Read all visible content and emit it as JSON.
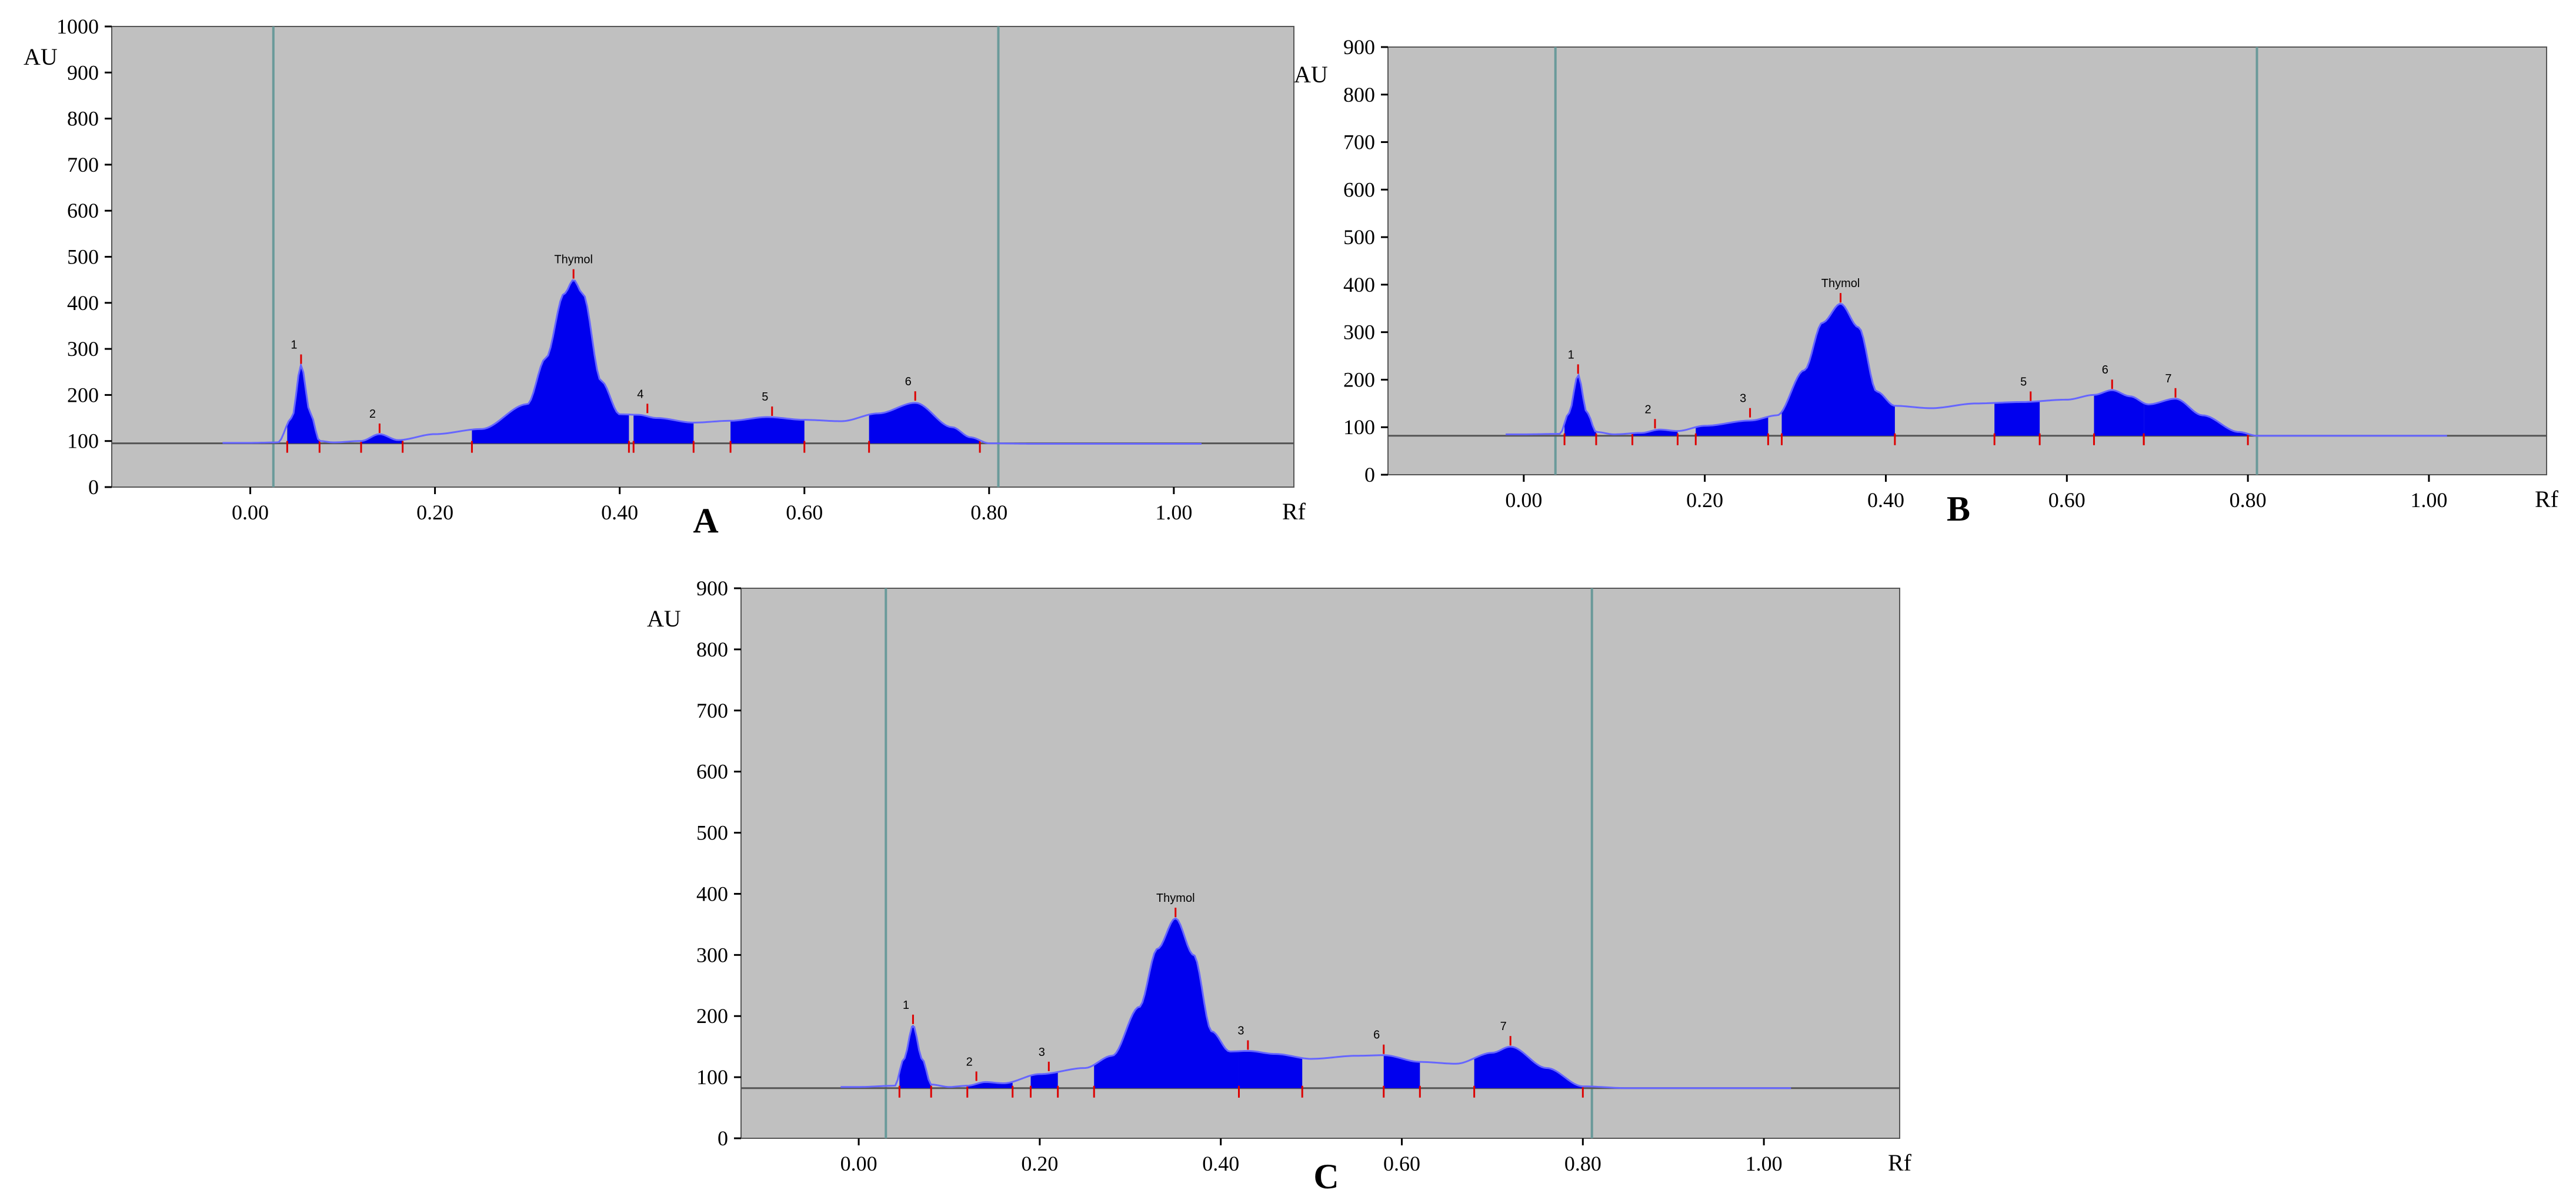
{
  "chart_data": [
    {
      "type": "area",
      "panel_label": "A",
      "ylabel": "AU",
      "xlabel": "Rf",
      "ylim": [
        0,
        1000
      ],
      "xlim": [
        -0.15,
        1.13
      ],
      "y_ticks": [
        0,
        100,
        200,
        300,
        400,
        500,
        600,
        700,
        800,
        900,
        1000
      ],
      "x_ticks": [
        "0.00",
        "0.20",
        "0.40",
        "0.60",
        "0.80",
        "1.00"
      ],
      "x_tick_values": [
        0.0,
        0.2,
        0.4,
        0.6,
        0.8,
        1.0
      ],
      "vertical_markers": [
        0.025,
        0.81
      ],
      "baseline": 95,
      "plot_bg": "#c0c0c0",
      "fill_color": "#0000ee",
      "line_color": "#6666ff",
      "marker_color": "#6a9a9a",
      "curve": {
        "rf": [
          -0.03,
          0.0,
          0.03,
          0.045,
          0.055,
          0.065,
          0.075,
          0.09,
          0.12,
          0.14,
          0.16,
          0.2,
          0.25,
          0.3,
          0.32,
          0.34,
          0.35,
          0.36,
          0.38,
          0.4,
          0.42,
          0.44,
          0.48,
          0.52,
          0.56,
          0.6,
          0.64,
          0.68,
          0.72,
          0.76,
          0.78,
          0.8,
          0.85,
          0.95,
          1.03
        ],
        "au": [
          96,
          96,
          97,
          150,
          265,
          160,
          100,
          97,
          100,
          115,
          102,
          115,
          126,
          180,
          280,
          420,
          450,
          420,
          230,
          158,
          157,
          150,
          140,
          144,
          152,
          146,
          143,
          160,
          183,
          130,
          108,
          95,
          94,
          94,
          94
        ]
      },
      "filled_regions": [
        [
          0.04,
          0.075
        ],
        [
          0.12,
          0.165
        ],
        [
          0.24,
          0.41
        ],
        [
          0.415,
          0.48
        ],
        [
          0.52,
          0.6
        ],
        [
          0.67,
          0.79
        ]
      ],
      "peaks": [
        {
          "label": "1",
          "rf": 0.055,
          "au": 265
        },
        {
          "label": "2",
          "rf": 0.14,
          "au": 115
        },
        {
          "label": "Thymol",
          "rf": 0.35,
          "au": 450
        },
        {
          "label": "4",
          "rf": 0.43,
          "au": 158
        },
        {
          "label": "5",
          "rf": 0.565,
          "au": 152
        },
        {
          "label": "6",
          "rf": 0.72,
          "au": 185
        }
      ]
    },
    {
      "type": "area",
      "panel_label": "B",
      "ylabel": "AU",
      "xlabel": "Rf",
      "ylim": [
        0,
        900
      ],
      "xlim": [
        -0.15,
        1.13
      ],
      "y_ticks": [
        0,
        100,
        200,
        300,
        400,
        500,
        600,
        700,
        800,
        900
      ],
      "x_ticks": [
        "0.00",
        "0.20",
        "0.40",
        "0.60",
        "0.80",
        "1.00"
      ],
      "x_tick_values": [
        0.0,
        0.2,
        0.4,
        0.6,
        0.8,
        1.0
      ],
      "vertical_markers": [
        0.035,
        0.81
      ],
      "baseline": 82,
      "plot_bg": "#c0c0c0",
      "fill_color": "#0000ee",
      "line_color": "#6666ff",
      "marker_color": "#6a9a9a",
      "curve": {
        "rf": [
          -0.02,
          0.0,
          0.04,
          0.05,
          0.06,
          0.07,
          0.08,
          0.1,
          0.13,
          0.15,
          0.17,
          0.2,
          0.25,
          0.28,
          0.31,
          0.33,
          0.35,
          0.37,
          0.39,
          0.41,
          0.45,
          0.5,
          0.55,
          0.6,
          0.63,
          0.65,
          0.67,
          0.69,
          0.72,
          0.75,
          0.79,
          0.81,
          0.9,
          1.02
        ],
        "au": [
          85,
          85,
          86,
          130,
          210,
          130,
          90,
          85,
          88,
          95,
          92,
          103,
          114,
          125,
          220,
          320,
          360,
          310,
          175,
          145,
          140,
          150,
          153,
          158,
          168,
          178,
          165,
          148,
          160,
          125,
          90,
          82,
          82,
          82
        ]
      },
      "filled_regions": [
        [
          0.045,
          0.08
        ],
        [
          0.12,
          0.17
        ],
        [
          0.19,
          0.27
        ],
        [
          0.285,
          0.41
        ],
        [
          0.52,
          0.57
        ],
        [
          0.63,
          0.685
        ],
        [
          0.685,
          0.8
        ]
      ],
      "peaks": [
        {
          "label": "1",
          "rf": 0.06,
          "au": 210
        },
        {
          "label": "2",
          "rf": 0.145,
          "au": 95
        },
        {
          "label": "3",
          "rf": 0.25,
          "au": 118
        },
        {
          "label": "Thymol",
          "rf": 0.35,
          "au": 360
        },
        {
          "label": "5",
          "rf": 0.56,
          "au": 153
        },
        {
          "label": "6",
          "rf": 0.65,
          "au": 178
        },
        {
          "label": "7",
          "rf": 0.72,
          "au": 160
        }
      ]
    },
    {
      "type": "area",
      "panel_label": "C",
      "ylabel": "AU",
      "xlabel": "Rf",
      "ylim": [
        0,
        900
      ],
      "xlim": [
        -0.13,
        1.15
      ],
      "y_ticks": [
        0,
        100,
        200,
        300,
        400,
        500,
        600,
        700,
        800,
        900
      ],
      "x_ticks": [
        "0.00",
        "0.20",
        "0.40",
        "0.60",
        "0.80",
        "1.00"
      ],
      "x_tick_values": [
        0.0,
        0.2,
        0.4,
        0.6,
        0.8,
        1.0
      ],
      "vertical_markers": [
        0.03,
        0.81
      ],
      "baseline": 82,
      "plot_bg": "#c0c0c0",
      "fill_color": "#0000ee",
      "line_color": "#6666ff",
      "marker_color": "#6a9a9a",
      "curve": {
        "rf": [
          -0.02,
          0.0,
          0.04,
          0.05,
          0.06,
          0.07,
          0.08,
          0.1,
          0.12,
          0.14,
          0.16,
          0.2,
          0.25,
          0.28,
          0.31,
          0.33,
          0.35,
          0.37,
          0.39,
          0.41,
          0.43,
          0.46,
          0.5,
          0.55,
          0.58,
          0.62,
          0.66,
          0.7,
          0.72,
          0.76,
          0.8,
          0.85,
          0.95,
          1.03
        ],
        "au": [
          84,
          84,
          86,
          130,
          185,
          130,
          88,
          84,
          86,
          92,
          90,
          105,
          115,
          135,
          215,
          310,
          360,
          300,
          175,
          142,
          143,
          138,
          130,
          135,
          136,
          125,
          122,
          140,
          150,
          115,
          85,
          82,
          82,
          82
        ]
      },
      "filled_regions": [
        [
          0.045,
          0.08
        ],
        [
          0.12,
          0.17
        ],
        [
          0.19,
          0.22
        ],
        [
          0.26,
          0.42
        ],
        [
          0.42,
          0.49
        ],
        [
          0.58,
          0.62
        ],
        [
          0.68,
          0.8
        ]
      ],
      "peaks": [
        {
          "label": "1",
          "rf": 0.06,
          "au": 185
        },
        {
          "label": "2",
          "rf": 0.13,
          "au": 92
        },
        {
          "label": "3",
          "rf": 0.21,
          "au": 108
        },
        {
          "label": "Thymol",
          "rf": 0.35,
          "au": 360
        },
        {
          "label": "3",
          "rf": 0.43,
          "au": 143
        },
        {
          "label": "6",
          "rf": 0.58,
          "au": 136
        },
        {
          "label": "7",
          "rf": 0.72,
          "au": 150
        }
      ]
    }
  ]
}
